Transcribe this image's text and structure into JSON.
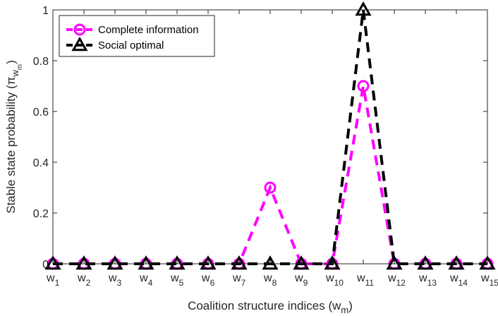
{
  "chart_data": {
    "type": "line",
    "xlabel": "Coalition structure indices (w",
    "xlabel_sub": "m",
    "xlabel_close": ")",
    "ylabel": "Stable state probability (π",
    "ylabel_sub": "w",
    "ylabel_subsub": "m",
    "ylabel_close": ")",
    "categories": [
      "1",
      "2",
      "3",
      "4",
      "5",
      "6",
      "7",
      "8",
      "9",
      "10",
      "11",
      "12",
      "13",
      "14",
      "15"
    ],
    "category_prefix": "w",
    "ylim": [
      0,
      1
    ],
    "yticks": [
      "0",
      "0.2",
      "0.4",
      "0.6",
      "0.8",
      "1"
    ],
    "ytick_values": [
      0,
      0.2,
      0.4,
      0.6,
      0.8,
      1
    ],
    "grid": false,
    "legend_position": "top-left",
    "series": [
      {
        "name": "Complete information",
        "color": "#ff00ff",
        "marker": "circle",
        "line_style": "dashed",
        "values": [
          0,
          0,
          0,
          0,
          0,
          0,
          0,
          0.3,
          0,
          0,
          0.7,
          0,
          0,
          0,
          0
        ]
      },
      {
        "name": "Social optimal",
        "color": "#000000",
        "marker": "triangle",
        "line_style": "dashed",
        "values": [
          0,
          0,
          0,
          0,
          0,
          0,
          0,
          0,
          0,
          0,
          1,
          0,
          0,
          0,
          0
        ]
      }
    ]
  }
}
